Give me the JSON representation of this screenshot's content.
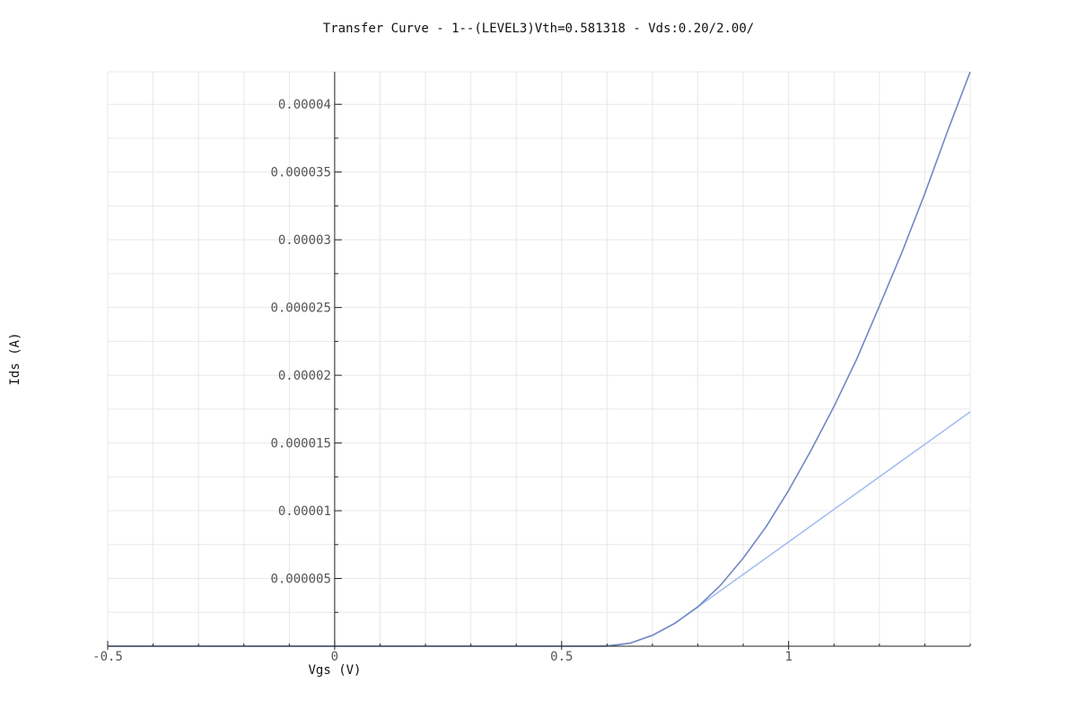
{
  "chart_data": {
    "type": "line",
    "title": "Transfer Curve - 1--(LEVEL3)Vth=0.581318 - Vds:0.20/2.00/",
    "xlabel": "Vgs (V)",
    "ylabel": "Ids (A)",
    "xlim": [
      -0.5,
      1.4
    ],
    "ylim": [
      0,
      4.24e-05
    ],
    "x_ticks": [
      {
        "value": -0.5,
        "label": "-0.5"
      },
      {
        "value": 0,
        "label": "0"
      },
      {
        "value": 0.5,
        "label": "0.5"
      },
      {
        "value": 1,
        "label": "1"
      }
    ],
    "y_ticks": [
      {
        "value": 5e-06,
        "label": "0.000005"
      },
      {
        "value": 1e-05,
        "label": "0.00001"
      },
      {
        "value": 1.5e-05,
        "label": "0.000015"
      },
      {
        "value": 2e-05,
        "label": "0.00002"
      },
      {
        "value": 2.5e-05,
        "label": "0.000025"
      },
      {
        "value": 3e-05,
        "label": "0.00003"
      },
      {
        "value": 3.5e-05,
        "label": "0.000035"
      },
      {
        "value": 4e-05,
        "label": "0.00004"
      }
    ],
    "grid": true,
    "series": [
      {
        "color": "#a6bdf2",
        "x": [
          -0.5,
          0.58,
          0.6,
          0.65,
          0.7,
          0.75,
          0.8,
          0.85,
          0.9,
          0.95,
          1.0,
          1.05,
          1.1,
          1.15,
          1.2,
          1.25,
          1.3,
          1.35,
          1.4
        ],
        "y": [
          0,
          0,
          1e-08,
          2.2e-07,
          8e-07,
          1.7e-06,
          2.9e-06,
          4.1e-06,
          5.3e-06,
          6.5e-06,
          7.7e-06,
          8.9e-06,
          1.01e-05,
          1.13e-05,
          1.25e-05,
          1.37e-05,
          1.49e-05,
          1.61e-05,
          1.73e-05
        ]
      },
      {
        "color": "#7088c4",
        "x": [
          -0.5,
          0.58,
          0.6,
          0.65,
          0.7,
          0.75,
          0.8,
          0.85,
          0.9,
          0.95,
          1.0,
          1.05,
          1.1,
          1.15,
          1.2,
          1.25,
          1.3,
          1.35,
          1.4
        ],
        "y": [
          0,
          0,
          1e-08,
          2.2e-07,
          8e-07,
          1.7e-06,
          2.9e-06,
          4.5e-06,
          6.5e-06,
          8.8e-06,
          1.15e-05,
          1.45e-05,
          1.77e-05,
          2.12e-05,
          2.51e-05,
          2.91e-05,
          3.34e-05,
          3.8e-05,
          4.24e-05
        ]
      }
    ]
  }
}
